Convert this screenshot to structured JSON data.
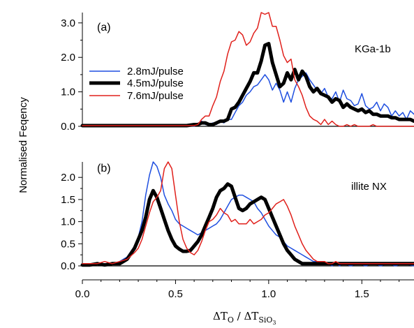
{
  "figure": {
    "ylabel": "Normalised Feqency",
    "xlabel": {
      "main": "ΔT",
      "sub_o": "O",
      "slash": " / ΔT",
      "sub_si": "SiO",
      "sub_3": "3"
    },
    "xticks": [
      "0.0",
      "0.5",
      "1.0",
      "1.5"
    ],
    "colors": {
      "2.8mJ/pulse": "#1f4fe0",
      "4.5mJ/pulse": "#000000",
      "7.6mJ/pulse": "#e0201b"
    }
  },
  "chart_data": [
    {
      "type": "line",
      "panel_label": "(a)",
      "sample": "KGa-1b",
      "xlim": [
        0.0,
        1.78
      ],
      "ylim": [
        0.0,
        3.3
      ],
      "yticks": [
        "0.0",
        "1.0",
        "2.0",
        "3.0"
      ],
      "legend_position": "left",
      "series": [
        {
          "name": "2.8mJ/pulse",
          "color": "#1f4fe0",
          "width": 1.5,
          "x": [
            0.0,
            0.04,
            0.08,
            0.12,
            0.16,
            0.2,
            0.24,
            0.28,
            0.32,
            0.36,
            0.4,
            0.44,
            0.48,
            0.52,
            0.56,
            0.6,
            0.62,
            0.64,
            0.66,
            0.68,
            0.7,
            0.72,
            0.74,
            0.76,
            0.78,
            0.8,
            0.82,
            0.84,
            0.86,
            0.88,
            0.9,
            0.92,
            0.94,
            0.96,
            0.98,
            1.0,
            1.02,
            1.04,
            1.06,
            1.08,
            1.1,
            1.12,
            1.14,
            1.16,
            1.18,
            1.2,
            1.22,
            1.24,
            1.26,
            1.28,
            1.3,
            1.32,
            1.34,
            1.36,
            1.38,
            1.4,
            1.42,
            1.44,
            1.46,
            1.48,
            1.5,
            1.52,
            1.54,
            1.56,
            1.58,
            1.6,
            1.62,
            1.64,
            1.66,
            1.68,
            1.7,
            1.72,
            1.74,
            1.76,
            1.78
          ],
          "y": [
            0.05,
            0.0,
            0.05,
            0.0,
            0.0,
            0.0,
            0.05,
            0.0,
            0.05,
            0.0,
            0.0,
            0.0,
            0.05,
            0.0,
            0.05,
            0.0,
            0.05,
            0.15,
            0.05,
            0.05,
            0.1,
            0.05,
            0.15,
            0.1,
            0.2,
            0.2,
            0.4,
            0.6,
            0.7,
            0.9,
            1.0,
            1.15,
            1.2,
            1.35,
            1.5,
            1.35,
            1.05,
            1.25,
            1.05,
            0.7,
            1.0,
            0.7,
            1.1,
            1.35,
            1.45,
            1.55,
            1.35,
            1.2,
            1.05,
            0.95,
            1.1,
            0.85,
            0.8,
            1.0,
            0.7,
            1.05,
            0.8,
            0.75,
            0.6,
            0.65,
            0.95,
            0.6,
            0.5,
            0.55,
            0.7,
            0.45,
            0.65,
            0.55,
            0.3,
            0.45,
            0.3,
            0.4,
            0.2,
            0.45,
            0.35
          ]
        },
        {
          "name": "4.5mJ/pulse",
          "color": "#000000",
          "width": 5,
          "x": [
            0.0,
            0.04,
            0.08,
            0.12,
            0.16,
            0.2,
            0.24,
            0.28,
            0.32,
            0.36,
            0.4,
            0.44,
            0.48,
            0.52,
            0.56,
            0.6,
            0.62,
            0.64,
            0.66,
            0.68,
            0.7,
            0.72,
            0.74,
            0.76,
            0.78,
            0.8,
            0.82,
            0.84,
            0.86,
            0.88,
            0.9,
            0.92,
            0.94,
            0.96,
            0.98,
            1.0,
            1.02,
            1.04,
            1.06,
            1.08,
            1.1,
            1.12,
            1.14,
            1.16,
            1.18,
            1.2,
            1.22,
            1.24,
            1.26,
            1.28,
            1.3,
            1.32,
            1.34,
            1.36,
            1.38,
            1.4,
            1.42,
            1.44,
            1.46,
            1.48,
            1.5,
            1.52,
            1.54,
            1.56,
            1.58,
            1.6,
            1.62,
            1.64,
            1.66,
            1.68,
            1.7,
            1.72,
            1.74,
            1.76,
            1.78
          ],
          "y": [
            0.02,
            0.02,
            0.02,
            0.02,
            0.02,
            0.02,
            0.02,
            0.02,
            0.02,
            0.02,
            0.02,
            0.02,
            0.02,
            0.02,
            0.02,
            0.05,
            0.05,
            0.1,
            0.1,
            0.05,
            0.05,
            0.1,
            0.15,
            0.15,
            0.2,
            0.5,
            0.55,
            0.7,
            0.9,
            1.1,
            1.3,
            1.55,
            1.55,
            1.9,
            2.35,
            2.4,
            1.85,
            1.5,
            1.15,
            1.25,
            1.55,
            1.35,
            1.65,
            1.35,
            1.6,
            1.45,
            1.15,
            1.0,
            1.1,
            0.95,
            0.9,
            0.85,
            0.7,
            0.8,
            0.75,
            0.55,
            0.65,
            0.55,
            0.5,
            0.45,
            0.5,
            0.4,
            0.45,
            0.35,
            0.35,
            0.3,
            0.3,
            0.3,
            0.25,
            0.25,
            0.2,
            0.2,
            0.2,
            0.2,
            0.15
          ]
        },
        {
          "name": "7.6mJ/pulse",
          "color": "#e0201b",
          "width": 1.5,
          "x": [
            0.0,
            0.04,
            0.08,
            0.12,
            0.16,
            0.2,
            0.24,
            0.28,
            0.32,
            0.36,
            0.4,
            0.44,
            0.48,
            0.52,
            0.56,
            0.6,
            0.62,
            0.64,
            0.66,
            0.68,
            0.7,
            0.72,
            0.74,
            0.76,
            0.78,
            0.8,
            0.82,
            0.84,
            0.86,
            0.88,
            0.9,
            0.92,
            0.94,
            0.96,
            0.98,
            1.0,
            1.02,
            1.04,
            1.06,
            1.08,
            1.1,
            1.12,
            1.14,
            1.16,
            1.18,
            1.2,
            1.22,
            1.24,
            1.26,
            1.28,
            1.3,
            1.32,
            1.34,
            1.36,
            1.38,
            1.4,
            1.42,
            1.44,
            1.46,
            1.48,
            1.5,
            1.52,
            1.54,
            1.56,
            1.58,
            1.6,
            1.62,
            1.64,
            1.66,
            1.68,
            1.7,
            1.72,
            1.74,
            1.76,
            1.78
          ],
          "y": [
            0.02,
            0.02,
            0.02,
            0.02,
            0.02,
            0.02,
            0.02,
            0.02,
            0.02,
            0.02,
            0.02,
            0.02,
            0.02,
            0.02,
            0.02,
            0.02,
            0.05,
            0.2,
            0.3,
            0.3,
            0.6,
            0.85,
            1.3,
            1.6,
            2.1,
            2.45,
            2.5,
            2.75,
            2.65,
            2.35,
            2.45,
            2.7,
            2.85,
            3.3,
            3.25,
            3.35,
            2.9,
            2.9,
            2.5,
            2.05,
            1.85,
            1.95,
            1.35,
            1.15,
            0.9,
            0.55,
            0.3,
            0.2,
            0.15,
            0.05,
            0.2,
            0.05,
            0.15,
            0.05,
            0.0,
            0.0,
            0.05,
            0.0,
            0.05,
            0.0,
            0.0,
            0.0,
            0.0,
            0.05,
            0.0,
            0.0,
            0.0,
            0.0,
            0.0,
            0.0,
            0.0,
            0.0,
            0.0,
            0.0,
            0.0
          ]
        }
      ]
    },
    {
      "type": "line",
      "panel_label": "(b)",
      "sample": "illite NX",
      "xlim": [
        0.0,
        1.78
      ],
      "ylim": [
        0.0,
        2.35
      ],
      "yticks": [
        "0.0",
        "0.5",
        "1.0",
        "1.5",
        "2.0"
      ],
      "series": [
        {
          "name": "2.8mJ/pulse",
          "color": "#1f4fe0",
          "width": 1.5,
          "x": [
            0.0,
            0.04,
            0.08,
            0.12,
            0.16,
            0.2,
            0.24,
            0.28,
            0.3,
            0.32,
            0.34,
            0.36,
            0.38,
            0.4,
            0.42,
            0.44,
            0.46,
            0.48,
            0.5,
            0.52,
            0.54,
            0.56,
            0.58,
            0.6,
            0.62,
            0.64,
            0.66,
            0.68,
            0.7,
            0.72,
            0.74,
            0.76,
            0.78,
            0.8,
            0.82,
            0.84,
            0.86,
            0.88,
            0.9,
            0.92,
            0.94,
            0.96,
            0.98,
            1.0,
            1.02,
            1.04,
            1.06,
            1.08,
            1.1,
            1.12,
            1.14,
            1.16,
            1.18,
            1.2,
            1.22,
            1.24,
            1.26,
            1.28,
            1.3,
            1.32,
            1.34,
            1.36,
            1.38,
            1.4,
            1.44,
            1.48,
            1.52,
            1.56,
            1.6,
            1.64,
            1.68,
            1.72,
            1.78
          ],
          "y": [
            0.05,
            0.05,
            0.05,
            0.05,
            0.05,
            0.1,
            0.2,
            0.45,
            0.65,
            1.0,
            1.6,
            2.05,
            2.35,
            2.25,
            2.0,
            1.6,
            1.4,
            1.25,
            1.05,
            0.95,
            0.9,
            0.85,
            0.8,
            0.75,
            0.7,
            0.75,
            0.8,
            0.85,
            0.9,
            0.95,
            1.05,
            1.2,
            1.35,
            1.5,
            1.55,
            1.6,
            1.6,
            1.55,
            1.5,
            1.45,
            1.3,
            1.2,
            1.05,
            0.9,
            0.8,
            0.7,
            0.65,
            0.55,
            0.45,
            0.4,
            0.35,
            0.3,
            0.25,
            0.2,
            0.15,
            0.1,
            0.1,
            0.05,
            0.05,
            0.05,
            0.0,
            0.05,
            0.0,
            0.05,
            0.0,
            0.05,
            0.0,
            0.05,
            0.0,
            0.05,
            0.0,
            0.05,
            0.0
          ]
        },
        {
          "name": "4.5mJ/pulse",
          "color": "#000000",
          "width": 5,
          "x": [
            0.0,
            0.04,
            0.08,
            0.12,
            0.16,
            0.2,
            0.24,
            0.28,
            0.3,
            0.32,
            0.34,
            0.36,
            0.38,
            0.4,
            0.42,
            0.44,
            0.46,
            0.48,
            0.5,
            0.52,
            0.54,
            0.56,
            0.58,
            0.6,
            0.62,
            0.64,
            0.66,
            0.68,
            0.7,
            0.72,
            0.74,
            0.76,
            0.78,
            0.8,
            0.82,
            0.84,
            0.86,
            0.88,
            0.9,
            0.92,
            0.94,
            0.96,
            0.98,
            1.0,
            1.02,
            1.04,
            1.06,
            1.08,
            1.1,
            1.12,
            1.14,
            1.16,
            1.18,
            1.2,
            1.22,
            1.24,
            1.26,
            1.28,
            1.3,
            1.32,
            1.34,
            1.36,
            1.38,
            1.4,
            1.44,
            1.48,
            1.52,
            1.56,
            1.6,
            1.64,
            1.68,
            1.72,
            1.78
          ],
          "y": [
            0.02,
            0.02,
            0.05,
            0.02,
            0.05,
            0.05,
            0.15,
            0.4,
            0.6,
            0.8,
            1.1,
            1.5,
            1.7,
            1.55,
            1.3,
            1.05,
            0.8,
            0.6,
            0.45,
            0.38,
            0.33,
            0.33,
            0.35,
            0.45,
            0.55,
            0.7,
            0.9,
            1.1,
            1.3,
            1.55,
            1.7,
            1.75,
            1.85,
            1.8,
            1.55,
            1.3,
            1.25,
            1.3,
            1.4,
            1.45,
            1.5,
            1.55,
            1.5,
            1.3,
            1.1,
            0.9,
            0.7,
            0.5,
            0.35,
            0.25,
            0.15,
            0.1,
            0.05,
            0.05,
            0.05,
            0.05,
            0.05,
            0.05,
            0.05,
            0.05,
            0.05,
            0.05,
            0.05,
            0.05,
            0.05,
            0.05,
            0.05,
            0.05,
            0.05,
            0.05,
            0.05,
            0.05,
            0.05
          ]
        },
        {
          "name": "7.6mJ/pulse",
          "color": "#e0201b",
          "width": 1.5,
          "x": [
            0.0,
            0.04,
            0.08,
            0.12,
            0.16,
            0.2,
            0.24,
            0.28,
            0.3,
            0.32,
            0.34,
            0.36,
            0.38,
            0.4,
            0.42,
            0.44,
            0.46,
            0.48,
            0.5,
            0.52,
            0.54,
            0.56,
            0.58,
            0.6,
            0.62,
            0.64,
            0.66,
            0.68,
            0.7,
            0.72,
            0.74,
            0.76,
            0.78,
            0.8,
            0.82,
            0.84,
            0.86,
            0.88,
            0.9,
            0.92,
            0.94,
            0.96,
            0.98,
            1.0,
            1.02,
            1.04,
            1.06,
            1.08,
            1.1,
            1.12,
            1.14,
            1.16,
            1.18,
            1.2,
            1.22,
            1.24,
            1.26,
            1.28,
            1.3,
            1.32,
            1.34,
            1.36,
            1.38,
            1.4,
            1.44,
            1.48,
            1.52,
            1.56,
            1.6,
            1.64,
            1.68,
            1.72,
            1.78
          ],
          "y": [
            0.05,
            0.05,
            0.05,
            0.1,
            0.05,
            0.1,
            0.15,
            0.3,
            0.4,
            0.6,
            0.9,
            1.2,
            1.45,
            1.55,
            1.7,
            2.2,
            2.4,
            2.2,
            1.6,
            1.0,
            0.6,
            0.4,
            0.3,
            0.25,
            0.35,
            0.55,
            0.8,
            1.0,
            1.05,
            1.15,
            1.3,
            1.2,
            1.15,
            1.0,
            1.05,
            0.95,
            0.95,
            0.95,
            1.05,
            0.95,
            1.0,
            1.05,
            1.15,
            1.2,
            1.3,
            1.4,
            1.45,
            1.5,
            1.35,
            1.15,
            0.9,
            0.7,
            0.5,
            0.35,
            0.25,
            0.15,
            0.1,
            0.1,
            0.1,
            0.05,
            0.05,
            0.1,
            0.05,
            0.05,
            0.05,
            0.05,
            0.05,
            0.05,
            0.05,
            0.05,
            0.05,
            0.05,
            0.05
          ]
        }
      ]
    }
  ]
}
